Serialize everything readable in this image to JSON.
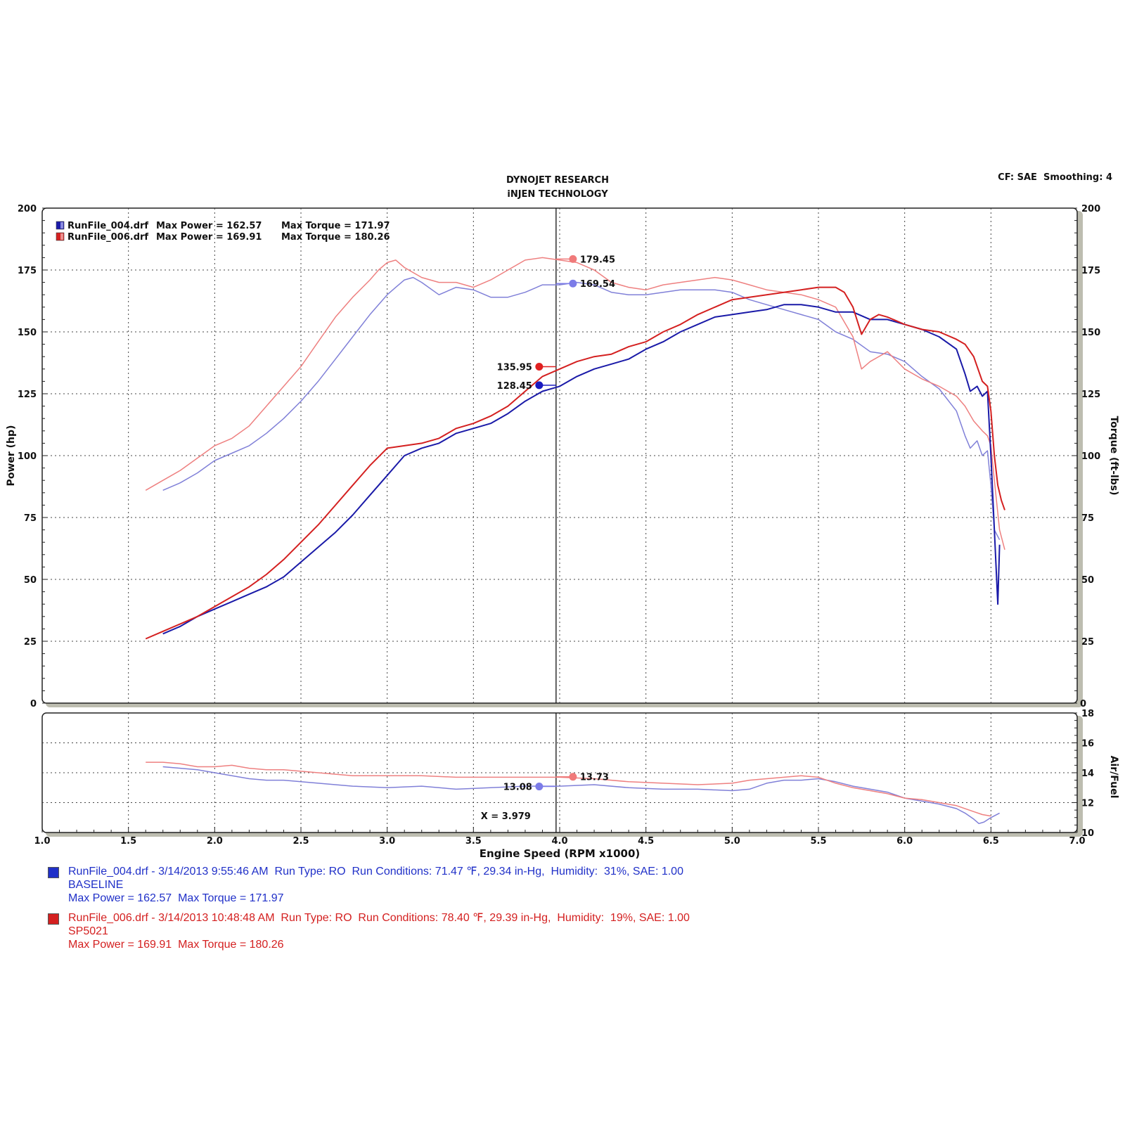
{
  "header": {
    "title_line1": "DYNOJET RESEARCH",
    "title_line2": "iNJEN TECHNOLOGY",
    "cf_label": "CF: SAE  Smoothing: 4"
  },
  "chart_data": {
    "type": "line",
    "xlabel": "Engine Speed (RPM x1000)",
    "xlim": [
      1.0,
      7.0
    ],
    "x_ticks": [
      "1.0",
      "1.5",
      "2.0",
      "2.5",
      "3.0",
      "3.5",
      "4.0",
      "4.5",
      "5.0",
      "5.5",
      "6.0",
      "6.5",
      "7.0"
    ],
    "main": {
      "ylabel_left": "Power (hp)",
      "ylabel_right": "Torque (ft-lbs)",
      "ylim": [
        0,
        200
      ],
      "y_ticks": [
        "0",
        "25",
        "50",
        "75",
        "100",
        "125",
        "150",
        "175",
        "200"
      ],
      "y_ticks_right": [
        "25",
        "50",
        "75",
        "100",
        "125",
        "150",
        "175",
        "200"
      ],
      "legend": [
        {
          "file": "RunFile_004.drf",
          "power": "Max Power = 162.57",
          "torque": "Max Torque = 171.97",
          "color": "#1a1aa8"
        },
        {
          "file": "RunFile_006.drf",
          "power": "Max Power = 169.91",
          "torque": "Max Torque = 180.26",
          "color": "#d42020"
        }
      ]
    },
    "afr": {
      "ylabel_right": "Air/Fuel",
      "ylim": [
        10,
        18
      ],
      "y_ticks": [
        "10",
        "12",
        "14",
        "16",
        "18"
      ]
    },
    "cursor": {
      "x": 3.979,
      "label": "X = 3.979"
    },
    "cursor_readouts": {
      "power_red": "135.95",
      "power_blue": "128.45",
      "torque_red": "179.45",
      "torque_blue": "169.54",
      "afr_red": "13.73",
      "afr_blue": "13.08"
    },
    "series": [
      {
        "name": "RunFile_004.drf",
        "kind": "power",
        "color": "#1a1aa8",
        "x": [
          1.7,
          1.8,
          1.9,
          2.0,
          2.1,
          2.2,
          2.3,
          2.4,
          2.5,
          2.6,
          2.7,
          2.8,
          2.9,
          3.0,
          3.05,
          3.1,
          3.2,
          3.3,
          3.4,
          3.5,
          3.6,
          3.7,
          3.8,
          3.9,
          4.0,
          4.1,
          4.2,
          4.3,
          4.4,
          4.5,
          4.6,
          4.7,
          4.8,
          4.9,
          5.0,
          5.1,
          5.2,
          5.3,
          5.4,
          5.5,
          5.6,
          5.7,
          5.8,
          5.9,
          6.0,
          6.1,
          6.2,
          6.3,
          6.35,
          6.38,
          6.42,
          6.45,
          6.48,
          6.5,
          6.52,
          6.54,
          6.55
        ],
        "y": [
          28,
          31,
          35,
          38,
          41,
          44,
          47,
          51,
          57,
          63,
          69,
          76,
          84,
          92,
          96,
          100,
          103,
          105,
          109,
          111,
          113,
          117,
          122,
          126,
          128,
          132,
          135,
          137,
          139,
          143,
          146,
          150,
          153,
          156,
          157,
          158,
          159,
          161,
          161,
          160,
          158,
          158,
          155,
          155,
          153,
          151,
          148,
          143,
          133,
          126,
          128,
          124,
          126,
          100,
          70,
          40,
          64
        ]
      },
      {
        "name": "RunFile_006.drf",
        "kind": "power",
        "color": "#d42020",
        "x": [
          1.6,
          1.7,
          1.8,
          1.9,
          2.0,
          2.1,
          2.2,
          2.3,
          2.4,
          2.5,
          2.6,
          2.7,
          2.8,
          2.9,
          3.0,
          3.1,
          3.2,
          3.3,
          3.4,
          3.5,
          3.6,
          3.7,
          3.8,
          3.9,
          4.0,
          4.1,
          4.2,
          4.3,
          4.4,
          4.5,
          4.6,
          4.7,
          4.8,
          4.9,
          5.0,
          5.1,
          5.2,
          5.3,
          5.4,
          5.5,
          5.6,
          5.65,
          5.7,
          5.75,
          5.8,
          5.85,
          5.9,
          6.0,
          6.1,
          6.2,
          6.3,
          6.35,
          6.4,
          6.45,
          6.48,
          6.5,
          6.52,
          6.54,
          6.56,
          6.58
        ],
        "y": [
          26,
          29,
          32,
          35,
          39,
          43,
          47,
          52,
          58,
          65,
          72,
          80,
          88,
          96,
          103,
          104,
          105,
          107,
          111,
          113,
          116,
          120,
          126,
          132,
          135,
          138,
          140,
          141,
          144,
          146,
          150,
          153,
          157,
          160,
          163,
          164,
          165,
          166,
          167,
          168,
          168,
          166,
          160,
          149,
          155,
          157,
          156,
          153,
          151,
          150,
          147,
          145,
          140,
          130,
          128,
          118,
          100,
          88,
          82,
          78
        ]
      },
      {
        "name": "RunFile_004.drf",
        "kind": "torque",
        "color": "#8080d8",
        "x": [
          1.7,
          1.8,
          1.9,
          2.0,
          2.1,
          2.2,
          2.3,
          2.4,
          2.5,
          2.6,
          2.7,
          2.8,
          2.9,
          3.0,
          3.05,
          3.1,
          3.15,
          3.2,
          3.3,
          3.4,
          3.5,
          3.6,
          3.7,
          3.8,
          3.9,
          4.0,
          4.1,
          4.2,
          4.3,
          4.4,
          4.5,
          4.6,
          4.7,
          4.8,
          4.9,
          5.0,
          5.1,
          5.2,
          5.3,
          5.4,
          5.5,
          5.6,
          5.7,
          5.8,
          5.9,
          6.0,
          6.1,
          6.2,
          6.3,
          6.35,
          6.38,
          6.42,
          6.45,
          6.48,
          6.5,
          6.52,
          6.55
        ],
        "y": [
          86,
          89,
          93,
          98,
          101,
          104,
          109,
          115,
          122,
          130,
          139,
          148,
          157,
          165,
          168,
          171,
          172,
          170,
          165,
          168,
          167,
          164,
          164,
          166,
          169,
          169,
          170,
          169,
          166,
          165,
          165,
          166,
          167,
          167,
          167,
          166,
          163,
          161,
          159,
          157,
          155,
          150,
          147,
          142,
          141,
          138,
          132,
          127,
          118,
          108,
          103,
          106,
          100,
          102,
          88,
          70,
          66
        ]
      },
      {
        "name": "RunFile_006.drf",
        "kind": "torque",
        "color": "#ee8080",
        "x": [
          1.6,
          1.7,
          1.8,
          1.9,
          2.0,
          2.1,
          2.2,
          2.3,
          2.4,
          2.5,
          2.6,
          2.7,
          2.8,
          2.9,
          2.95,
          3.0,
          3.05,
          3.1,
          3.2,
          3.3,
          3.4,
          3.5,
          3.6,
          3.7,
          3.8,
          3.9,
          4.0,
          4.1,
          4.2,
          4.3,
          4.4,
          4.5,
          4.6,
          4.7,
          4.8,
          4.9,
          5.0,
          5.1,
          5.2,
          5.3,
          5.4,
          5.5,
          5.6,
          5.7,
          5.75,
          5.8,
          5.9,
          6.0,
          6.1,
          6.2,
          6.3,
          6.35,
          6.4,
          6.45,
          6.48,
          6.5,
          6.52,
          6.55,
          6.58
        ],
        "y": [
          86,
          90,
          94,
          99,
          104,
          107,
          112,
          120,
          128,
          136,
          146,
          156,
          164,
          171,
          175,
          178,
          179,
          176,
          172,
          170,
          170,
          168,
          171,
          175,
          179,
          180,
          179,
          178,
          175,
          170,
          168,
          167,
          169,
          170,
          171,
          172,
          171,
          169,
          167,
          166,
          165,
          163,
          160,
          148,
          135,
          138,
          142,
          135,
          131,
          128,
          124,
          120,
          114,
          110,
          108,
          104,
          90,
          70,
          62
        ]
      }
    ],
    "afr_series": [
      {
        "name": "RunFile_004.drf",
        "color": "#8080d8",
        "x": [
          1.7,
          1.8,
          1.9,
          2.0,
          2.1,
          2.2,
          2.3,
          2.4,
          2.5,
          2.6,
          2.8,
          3.0,
          3.2,
          3.4,
          3.6,
          3.8,
          4.0,
          4.2,
          4.4,
          4.6,
          4.8,
          5.0,
          5.1,
          5.2,
          5.3,
          5.4,
          5.5,
          5.6,
          5.7,
          5.8,
          5.9,
          6.0,
          6.1,
          6.2,
          6.3,
          6.35,
          6.4,
          6.43,
          6.46,
          6.5,
          6.55
        ],
        "y": [
          14.4,
          14.3,
          14.2,
          14.0,
          13.8,
          13.6,
          13.5,
          13.5,
          13.4,
          13.3,
          13.1,
          13.0,
          13.1,
          12.9,
          13.0,
          13.1,
          13.1,
          13.2,
          13.0,
          12.9,
          12.9,
          12.8,
          12.9,
          13.3,
          13.5,
          13.5,
          13.6,
          13.4,
          13.1,
          12.9,
          12.7,
          12.3,
          12.1,
          11.9,
          11.6,
          11.3,
          10.9,
          10.6,
          10.7,
          11.0,
          11.3
        ]
      },
      {
        "name": "RunFile_006.drf",
        "color": "#ee8080",
        "x": [
          1.6,
          1.7,
          1.8,
          1.9,
          2.0,
          2.1,
          2.2,
          2.3,
          2.4,
          2.5,
          2.6,
          2.8,
          3.0,
          3.2,
          3.4,
          3.6,
          3.8,
          4.0,
          4.2,
          4.4,
          4.6,
          4.8,
          5.0,
          5.1,
          5.2,
          5.3,
          5.4,
          5.5,
          5.6,
          5.7,
          5.8,
          5.9,
          6.0,
          6.1,
          6.2,
          6.3,
          6.4,
          6.45,
          6.5
        ],
        "y": [
          14.7,
          14.7,
          14.6,
          14.4,
          14.4,
          14.5,
          14.3,
          14.2,
          14.2,
          14.1,
          14.0,
          13.8,
          13.8,
          13.8,
          13.7,
          13.7,
          13.7,
          13.7,
          13.6,
          13.4,
          13.3,
          13.2,
          13.3,
          13.5,
          13.6,
          13.7,
          13.8,
          13.7,
          13.3,
          13.0,
          12.8,
          12.6,
          12.3,
          12.2,
          12.0,
          11.8,
          11.4,
          11.2,
          11.1
        ]
      }
    ]
  },
  "runs": [
    {
      "color": "#2030c8",
      "swatch": "#2030c8",
      "line1": "RunFile_004.drf - 3/14/2013 9:55:46 AM  Run Type: RO  Run Conditions: 71.47 ℉, 29.34 in-Hg,  Humidity:  31%, SAE: 1.00",
      "line2": "BASELINE",
      "line3": "Max Power = 162.57  Max Torque = 171.97"
    },
    {
      "color": "#d42020",
      "swatch": "#d42020",
      "line1": "RunFile_006.drf - 3/14/2013 10:48:48 AM  Run Type: RO  Run Conditions: 78.40 ℉, 29.39 in-Hg,  Humidity:  19%, SAE: 1.00",
      "line2": "SP5021",
      "line3": "Max Power = 169.91  Max Torque = 180.26"
    }
  ]
}
